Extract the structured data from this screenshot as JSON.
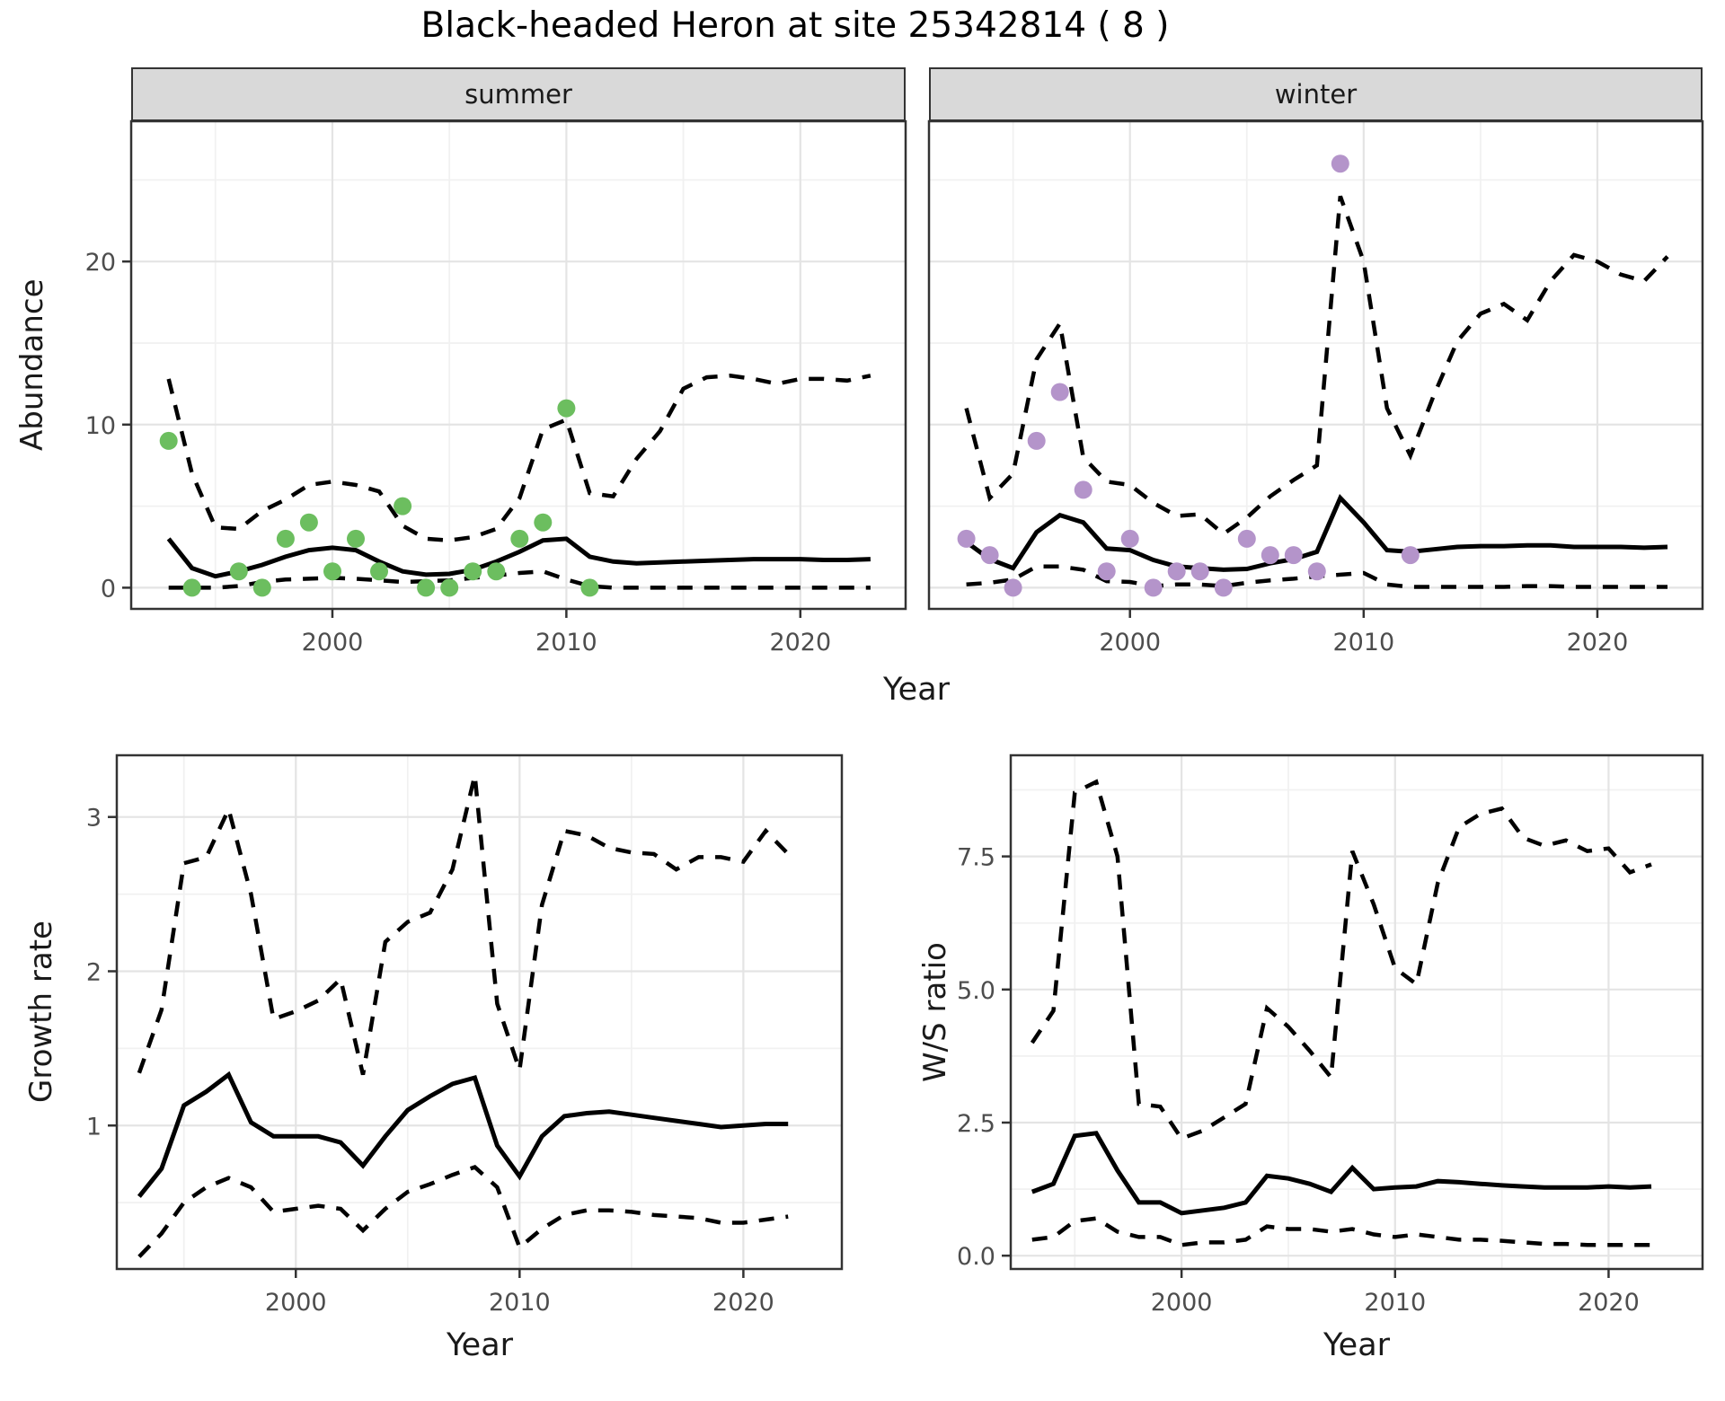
{
  "title": "Black-headed Heron at site 25342814 ( 8 )",
  "colors": {
    "summer_points": "#6cbe5f",
    "winter_points": "#b494ca",
    "line": "#000000",
    "grid_major": "#e4e4e4",
    "grid_minor": "#f1f1f1",
    "strip_bg": "#d9d9d9",
    "panel_border": "#333333",
    "axis_text": "#4d4d4d"
  },
  "facets": {
    "summer": "summer",
    "winter": "winter"
  },
  "axes": {
    "abundance": "Abundance",
    "year_top": "Year",
    "growth_rate": "Growth rate",
    "year_growth": "Year",
    "ws_ratio": "W/S ratio",
    "year_ws": "Year"
  },
  "chart_data": [
    {
      "id": "summer",
      "type": "line",
      "facet_label": "summer",
      "xlabel": "Year",
      "ylabel": "Abundance",
      "xlim": [
        1991.4,
        2024.5
      ],
      "ylim": [
        -1.3,
        28.6
      ],
      "grid": true,
      "legend": "none",
      "x_ticks": [
        {
          "v": 2000,
          "label": "2000"
        },
        {
          "v": 2010,
          "label": "2010"
        },
        {
          "v": 2020,
          "label": "2020"
        }
      ],
      "x_minor": [
        1995,
        2005,
        2015
      ],
      "y_ticks": [
        {
          "v": 0,
          "label": "0"
        },
        {
          "v": 10,
          "label": "10"
        },
        {
          "v": 20,
          "label": "20"
        }
      ],
      "y_minor": [
        5,
        15,
        25
      ],
      "y_tick_labels": true,
      "years": [
        1993,
        1994,
        1995,
        1996,
        1997,
        1998,
        1999,
        2000,
        2001,
        2002,
        2003,
        2004,
        2005,
        2006,
        2007,
        2008,
        2009,
        2010,
        2011,
        2012,
        2013,
        2014,
        2015,
        2016,
        2017,
        2018,
        2019,
        2020,
        2021,
        2022,
        2023
      ],
      "series": [
        {
          "name": "upper-ci",
          "style": "dashed",
          "values": [
            12.8,
            7.0,
            3.7,
            3.6,
            4.7,
            5.4,
            6.3,
            6.5,
            6.3,
            5.9,
            3.8,
            3.0,
            2.9,
            3.1,
            3.6,
            5.5,
            9.7,
            10.3,
            5.8,
            5.6,
            7.9,
            9.6,
            12.2,
            12.9,
            13.0,
            12.8,
            12.5,
            12.8,
            12.8,
            12.7,
            13.0
          ]
        },
        {
          "name": "fit",
          "style": "solid",
          "values": [
            3.0,
            1.2,
            0.7,
            1.0,
            1.4,
            1.9,
            2.3,
            2.45,
            2.3,
            1.6,
            1.0,
            0.8,
            0.85,
            1.1,
            1.6,
            2.2,
            2.9,
            3.0,
            1.9,
            1.6,
            1.5,
            1.55,
            1.6,
            1.65,
            1.7,
            1.75,
            1.75,
            1.75,
            1.7,
            1.7,
            1.75
          ]
        },
        {
          "name": "lower-ci",
          "style": "dashed",
          "values": [
            0,
            0,
            0,
            0.1,
            0.35,
            0.5,
            0.55,
            0.6,
            0.55,
            0.45,
            0.35,
            0.4,
            0.45,
            0.6,
            0.75,
            0.9,
            1.0,
            0.5,
            0.1,
            0,
            0,
            0,
            0,
            0,
            0,
            0,
            0,
            0,
            0,
            0,
            0
          ]
        }
      ],
      "observations": {
        "color_key": "summer_points",
        "points": [
          [
            1993,
            9
          ],
          [
            1994,
            0
          ],
          [
            1996,
            1
          ],
          [
            1997,
            0
          ],
          [
            1998,
            3
          ],
          [
            1999,
            4
          ],
          [
            2000,
            1
          ],
          [
            2001,
            3
          ],
          [
            2002,
            1
          ],
          [
            2003,
            5
          ],
          [
            2004,
            0
          ],
          [
            2005,
            0
          ],
          [
            2006,
            1
          ],
          [
            2007,
            1
          ],
          [
            2008,
            3
          ],
          [
            2009,
            4
          ],
          [
            2010,
            11
          ],
          [
            2011,
            0
          ]
        ]
      }
    },
    {
      "id": "winter",
      "type": "line",
      "facet_label": "winter",
      "xlabel": "Year",
      "ylabel": "Abundance",
      "xlim": [
        1991.4,
        2024.5
      ],
      "ylim": [
        -1.3,
        28.6
      ],
      "grid": true,
      "legend": "none",
      "x_ticks": [
        {
          "v": 2000,
          "label": "2000"
        },
        {
          "v": 2010,
          "label": "2010"
        },
        {
          "v": 2020,
          "label": "2020"
        }
      ],
      "x_minor": [
        1995,
        2005,
        2015
      ],
      "y_ticks": [
        {
          "v": 0,
          "label": "0"
        },
        {
          "v": 10,
          "label": "10"
        },
        {
          "v": 20,
          "label": "20"
        }
      ],
      "y_minor": [
        5,
        15,
        25
      ],
      "y_tick_labels": false,
      "years": [
        1993,
        1994,
        1995,
        1996,
        1997,
        1998,
        1999,
        2000,
        2001,
        2002,
        2003,
        2004,
        2005,
        2006,
        2007,
        2008,
        2009,
        2010,
        2011,
        2012,
        2013,
        2014,
        2015,
        2016,
        2017,
        2018,
        2019,
        2020,
        2021,
        2022,
        2023
      ],
      "series": [
        {
          "name": "upper-ci",
          "style": "dashed",
          "values": [
            11,
            5.5,
            7,
            14,
            16.2,
            8,
            6.5,
            6.3,
            5.2,
            4.4,
            4.5,
            3.3,
            4.3,
            5.6,
            6.6,
            7.5,
            24,
            20,
            11,
            8.1,
            11.8,
            15.1,
            16.8,
            17.4,
            16.4,
            18.8,
            20.4,
            20.0,
            19.2,
            18.8,
            20.3
          ]
        },
        {
          "name": "fit",
          "style": "solid",
          "values": [
            2.8,
            1.75,
            1.2,
            3.4,
            4.45,
            4.0,
            2.4,
            2.3,
            1.7,
            1.3,
            1.2,
            1.1,
            1.15,
            1.5,
            1.75,
            2.2,
            5.5,
            4.0,
            2.3,
            2.2,
            2.35,
            2.5,
            2.55,
            2.55,
            2.6,
            2.6,
            2.5,
            2.5,
            2.5,
            2.45,
            2.5
          ]
        },
        {
          "name": "lower-ci",
          "style": "dashed",
          "values": [
            0.2,
            0.3,
            0.5,
            1.3,
            1.3,
            1.1,
            0.4,
            0.35,
            0.1,
            0.2,
            0.2,
            0.1,
            0.3,
            0.45,
            0.55,
            0.7,
            0.8,
            0.9,
            0.2,
            0.05,
            0.05,
            0.05,
            0.05,
            0.05,
            0.1,
            0.1,
            0.05,
            0.05,
            0.05,
            0.05,
            0.05
          ]
        }
      ],
      "observations": {
        "color_key": "winter_points",
        "points": [
          [
            1993,
            3
          ],
          [
            1994,
            2
          ],
          [
            1995,
            0
          ],
          [
            1996,
            9
          ],
          [
            1997,
            12
          ],
          [
            1998,
            6
          ],
          [
            1999,
            1
          ],
          [
            2000,
            3
          ],
          [
            2001,
            0
          ],
          [
            2002,
            1
          ],
          [
            2003,
            1
          ],
          [
            2004,
            0
          ],
          [
            2005,
            3
          ],
          [
            2006,
            2
          ],
          [
            2007,
            2
          ],
          [
            2008,
            1
          ],
          [
            2009,
            26
          ],
          [
            2012,
            2
          ]
        ]
      }
    },
    {
      "id": "growth",
      "type": "line",
      "facet_label": "",
      "xlabel": "Year",
      "ylabel": "Growth rate",
      "xlim": [
        1992.0,
        2024.4
      ],
      "ylim": [
        0.07,
        3.4
      ],
      "grid": true,
      "legend": "none",
      "x_ticks": [
        {
          "v": 2000,
          "label": "2000"
        },
        {
          "v": 2010,
          "label": "2010"
        },
        {
          "v": 2020,
          "label": "2020"
        }
      ],
      "x_minor": [
        1995,
        2005,
        2015
      ],
      "y_ticks": [
        {
          "v": 1,
          "label": "1"
        },
        {
          "v": 2,
          "label": "2"
        },
        {
          "v": 3,
          "label": "3"
        }
      ],
      "y_minor": [
        0.5,
        1.5,
        2.5
      ],
      "y_tick_labels": true,
      "years": [
        1993,
        1994,
        1995,
        1996,
        1997,
        1998,
        1999,
        2000,
        2001,
        2002,
        2003,
        2004,
        2005,
        2006,
        2007,
        2008,
        2009,
        2010,
        2011,
        2012,
        2013,
        2014,
        2015,
        2016,
        2017,
        2018,
        2019,
        2020,
        2021,
        2022
      ],
      "series": [
        {
          "name": "upper-ci",
          "style": "dashed",
          "values": [
            1.34,
            1.75,
            2.7,
            2.74,
            3.05,
            2.5,
            1.69,
            1.74,
            1.81,
            1.95,
            1.33,
            2.19,
            2.32,
            2.38,
            2.66,
            3.27,
            1.79,
            1.36,
            2.43,
            2.91,
            2.88,
            2.8,
            2.77,
            2.76,
            2.66,
            2.74,
            2.74,
            2.71,
            2.91,
            2.76
          ]
        },
        {
          "name": "fit",
          "style": "solid",
          "values": [
            0.54,
            0.72,
            1.13,
            1.22,
            1.33,
            1.02,
            0.93,
            0.93,
            0.93,
            0.89,
            0.74,
            0.93,
            1.1,
            1.19,
            1.27,
            1.31,
            0.87,
            0.67,
            0.93,
            1.06,
            1.08,
            1.09,
            1.07,
            1.05,
            1.03,
            1.01,
            0.99,
            1.0,
            1.01,
            1.01
          ]
        },
        {
          "name": "lower-ci",
          "style": "dashed",
          "values": [
            0.15,
            0.3,
            0.5,
            0.6,
            0.66,
            0.6,
            0.44,
            0.46,
            0.48,
            0.46,
            0.32,
            0.46,
            0.57,
            0.62,
            0.68,
            0.73,
            0.6,
            0.21,
            0.33,
            0.42,
            0.45,
            0.45,
            0.44,
            0.42,
            0.41,
            0.4,
            0.37,
            0.37,
            0.39,
            0.41
          ]
        }
      ]
    },
    {
      "id": "ws",
      "type": "line",
      "facet_label": "",
      "xlabel": "Year",
      "ylabel": "W/S ratio",
      "xlim": [
        1992.0,
        2024.4
      ],
      "ylim": [
        -0.25,
        9.4
      ],
      "grid": true,
      "legend": "none",
      "x_ticks": [
        {
          "v": 2000,
          "label": "2000"
        },
        {
          "v": 2010,
          "label": "2010"
        },
        {
          "v": 2020,
          "label": "2020"
        }
      ],
      "x_minor": [
        1995,
        2005,
        2015
      ],
      "y_ticks": [
        {
          "v": 0,
          "label": "0.0"
        },
        {
          "v": 2.5,
          "label": "2.5"
        },
        {
          "v": 5,
          "label": "5.0"
        },
        {
          "v": 7.5,
          "label": "7.5"
        }
      ],
      "y_minor": [
        1.25,
        3.75,
        6.25,
        8.75
      ],
      "y_tick_labels": true,
      "years": [
        1993,
        1994,
        1995,
        1996,
        1997,
        1998,
        1999,
        2000,
        2001,
        2002,
        2003,
        2004,
        2005,
        2006,
        2007,
        2008,
        2009,
        2010,
        2011,
        2012,
        2013,
        2014,
        2015,
        2016,
        2017,
        2018,
        2019,
        2020,
        2021,
        2022
      ],
      "series": [
        {
          "name": "upper-ci",
          "style": "dashed",
          "values": [
            4.0,
            4.6,
            8.7,
            8.9,
            7.5,
            2.85,
            2.8,
            2.2,
            2.35,
            2.6,
            2.85,
            4.65,
            4.3,
            3.85,
            3.35,
            7.6,
            6.6,
            5.4,
            5.1,
            7.0,
            8.05,
            8.3,
            8.4,
            7.85,
            7.7,
            7.8,
            7.6,
            7.65,
            7.2,
            7.35
          ]
        },
        {
          "name": "fit",
          "style": "solid",
          "values": [
            1.2,
            1.35,
            2.25,
            2.3,
            1.6,
            1.0,
            1.0,
            0.8,
            0.85,
            0.9,
            1.0,
            1.5,
            1.45,
            1.35,
            1.2,
            1.65,
            1.25,
            1.28,
            1.3,
            1.4,
            1.38,
            1.35,
            1.32,
            1.3,
            1.28,
            1.28,
            1.28,
            1.3,
            1.28,
            1.3
          ]
        },
        {
          "name": "lower-ci",
          "style": "dashed",
          "values": [
            0.3,
            0.35,
            0.65,
            0.7,
            0.45,
            0.35,
            0.35,
            0.2,
            0.25,
            0.25,
            0.3,
            0.55,
            0.5,
            0.5,
            0.45,
            0.5,
            0.4,
            0.35,
            0.4,
            0.35,
            0.3,
            0.3,
            0.28,
            0.25,
            0.22,
            0.22,
            0.2,
            0.2,
            0.2,
            0.2
          ]
        }
      ]
    }
  ]
}
